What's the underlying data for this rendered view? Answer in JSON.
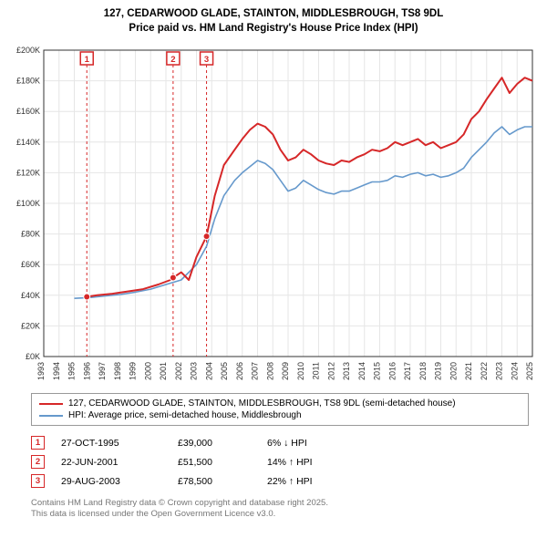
{
  "title_line1": "127, CEDARWOOD GLADE, STAINTON, MIDDLESBROUGH, TS8 9DL",
  "title_line2": "Price paid vs. HM Land Registry's House Price Index (HPI)",
  "chart": {
    "type": "line",
    "background_color": "#ffffff",
    "plot_background_color": "#ffffff",
    "grid_color": "#e6e6e6",
    "axis_color": "#333333",
    "xlim": [
      1993,
      2025
    ],
    "ylim": [
      0,
      200000
    ],
    "ytick_step": 20000,
    "ytick_labels": [
      "£0K",
      "£20K",
      "£40K",
      "£60K",
      "£80K",
      "£100K",
      "£120K",
      "£140K",
      "£160K",
      "£180K",
      "£200K"
    ],
    "xtick_years": [
      1993,
      1994,
      1995,
      1996,
      1997,
      1998,
      1999,
      2000,
      2001,
      2002,
      2003,
      2004,
      2005,
      2006,
      2007,
      2008,
      2009,
      2010,
      2011,
      2012,
      2013,
      2014,
      2015,
      2016,
      2017,
      2018,
      2019,
      2020,
      2021,
      2022,
      2023,
      2024,
      2025
    ],
    "series": [
      {
        "name": "127, CEDARWOOD GLADE, STAINTON, MIDDLESBROUGH, TS8 9DL (semi-detached house)",
        "color": "#d62728",
        "line_width": 2,
        "points": [
          [
            1995.82,
            39000
          ],
          [
            1996.5,
            40000
          ],
          [
            1997.5,
            41000
          ],
          [
            1998.5,
            42500
          ],
          [
            1999.5,
            44000
          ],
          [
            2000.5,
            47000
          ],
          [
            2001.3,
            50000
          ],
          [
            2001.47,
            51500
          ],
          [
            2002.0,
            55000
          ],
          [
            2002.5,
            50000
          ],
          [
            2003.0,
            65000
          ],
          [
            2003.66,
            78500
          ],
          [
            2004.2,
            105000
          ],
          [
            2004.8,
            125000
          ],
          [
            2005.5,
            135000
          ],
          [
            2006.0,
            142000
          ],
          [
            2006.5,
            148000
          ],
          [
            2007.0,
            152000
          ],
          [
            2007.5,
            150000
          ],
          [
            2008.0,
            145000
          ],
          [
            2008.5,
            135000
          ],
          [
            2009.0,
            128000
          ],
          [
            2009.5,
            130000
          ],
          [
            2010.0,
            135000
          ],
          [
            2010.5,
            132000
          ],
          [
            2011.0,
            128000
          ],
          [
            2011.5,
            126000
          ],
          [
            2012.0,
            125000
          ],
          [
            2012.5,
            128000
          ],
          [
            2013.0,
            127000
          ],
          [
            2013.5,
            130000
          ],
          [
            2014.0,
            132000
          ],
          [
            2014.5,
            135000
          ],
          [
            2015.0,
            134000
          ],
          [
            2015.5,
            136000
          ],
          [
            2016.0,
            140000
          ],
          [
            2016.5,
            138000
          ],
          [
            2017.0,
            140000
          ],
          [
            2017.5,
            142000
          ],
          [
            2018.0,
            138000
          ],
          [
            2018.5,
            140000
          ],
          [
            2019.0,
            136000
          ],
          [
            2019.5,
            138000
          ],
          [
            2020.0,
            140000
          ],
          [
            2020.5,
            145000
          ],
          [
            2021.0,
            155000
          ],
          [
            2021.5,
            160000
          ],
          [
            2022.0,
            168000
          ],
          [
            2022.5,
            175000
          ],
          [
            2023.0,
            182000
          ],
          [
            2023.5,
            172000
          ],
          [
            2024.0,
            178000
          ],
          [
            2024.5,
            182000
          ],
          [
            2025.0,
            180000
          ]
        ],
        "markers": [
          {
            "x": 1995.82,
            "y": 39000
          },
          {
            "x": 2001.47,
            "y": 51500
          },
          {
            "x": 2003.66,
            "y": 78500
          }
        ]
      },
      {
        "name": "HPI: Average price, semi-detached house, Middlesbrough",
        "color": "#6699cc",
        "line_width": 1.6,
        "points": [
          [
            1995.0,
            38000
          ],
          [
            1996.0,
            38500
          ],
          [
            1997.0,
            39500
          ],
          [
            1998.0,
            40500
          ],
          [
            1999.0,
            42000
          ],
          [
            2000.0,
            44000
          ],
          [
            2001.0,
            47000
          ],
          [
            2002.0,
            50000
          ],
          [
            2003.0,
            60000
          ],
          [
            2003.66,
            72000
          ],
          [
            2004.2,
            90000
          ],
          [
            2004.8,
            105000
          ],
          [
            2005.5,
            115000
          ],
          [
            2006.0,
            120000
          ],
          [
            2006.5,
            124000
          ],
          [
            2007.0,
            128000
          ],
          [
            2007.5,
            126000
          ],
          [
            2008.0,
            122000
          ],
          [
            2008.5,
            115000
          ],
          [
            2009.0,
            108000
          ],
          [
            2009.5,
            110000
          ],
          [
            2010.0,
            115000
          ],
          [
            2010.5,
            112000
          ],
          [
            2011.0,
            109000
          ],
          [
            2011.5,
            107000
          ],
          [
            2012.0,
            106000
          ],
          [
            2012.5,
            108000
          ],
          [
            2013.0,
            108000
          ],
          [
            2013.5,
            110000
          ],
          [
            2014.0,
            112000
          ],
          [
            2014.5,
            114000
          ],
          [
            2015.0,
            114000
          ],
          [
            2015.5,
            115000
          ],
          [
            2016.0,
            118000
          ],
          [
            2016.5,
            117000
          ],
          [
            2017.0,
            119000
          ],
          [
            2017.5,
            120000
          ],
          [
            2018.0,
            118000
          ],
          [
            2018.5,
            119000
          ],
          [
            2019.0,
            117000
          ],
          [
            2019.5,
            118000
          ],
          [
            2020.0,
            120000
          ],
          [
            2020.5,
            123000
          ],
          [
            2021.0,
            130000
          ],
          [
            2021.5,
            135000
          ],
          [
            2022.0,
            140000
          ],
          [
            2022.5,
            146000
          ],
          [
            2023.0,
            150000
          ],
          [
            2023.5,
            145000
          ],
          [
            2024.0,
            148000
          ],
          [
            2024.5,
            150000
          ],
          [
            2025.0,
            150000
          ]
        ]
      }
    ],
    "event_markers": [
      {
        "num": "1",
        "x": 1995.82,
        "color": "#d62728"
      },
      {
        "num": "2",
        "x": 2001.47,
        "color": "#d62728"
      },
      {
        "num": "3",
        "x": 2003.66,
        "color": "#d62728"
      }
    ],
    "axis_label_fontsize": 9,
    "tick_fontsize": 9
  },
  "legend_items": [
    {
      "color": "#d62728",
      "label": "127, CEDARWOOD GLADE, STAINTON, MIDDLESBROUGH, TS8 9DL (semi-detached house)"
    },
    {
      "color": "#6699cc",
      "label": "HPI: Average price, semi-detached house, Middlesbrough"
    }
  ],
  "events": [
    {
      "num": "1",
      "color": "#d62728",
      "date": "27-OCT-1995",
      "price": "£39,000",
      "diff": "6% ↓ HPI"
    },
    {
      "num": "2",
      "color": "#d62728",
      "date": "22-JUN-2001",
      "price": "£51,500",
      "diff": "14% ↑ HPI"
    },
    {
      "num": "3",
      "color": "#d62728",
      "date": "29-AUG-2003",
      "price": "£78,500",
      "diff": "22% ↑ HPI"
    }
  ],
  "footer_line1": "Contains HM Land Registry data © Crown copyright and database right 2025.",
  "footer_line2": "This data is licensed under the Open Government Licence v3.0.",
  "colors": {
    "text": "#333333",
    "footer": "#777777"
  }
}
